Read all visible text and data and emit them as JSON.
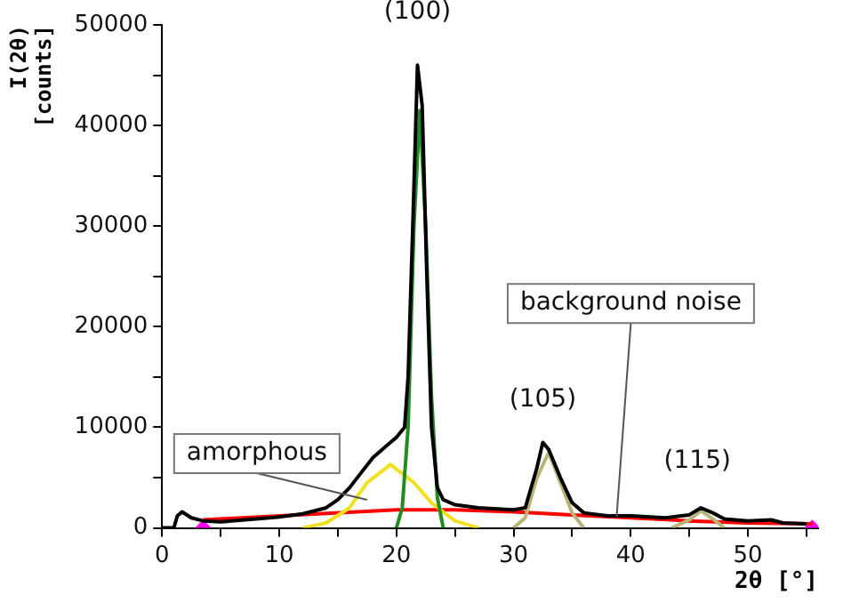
{
  "chart_data": {
    "type": "line",
    "xlabel": "2θ [°]",
    "ylabel": "I(2θ) [counts]",
    "xlim": [
      0,
      56
    ],
    "ylim": [
      0,
      50000
    ],
    "xticks": [
      0,
      {
        "value": 5,
        "label": null
      },
      10,
      {
        "value": 15,
        "label": null
      },
      20,
      {
        "value": 25,
        "label": null
      },
      30,
      {
        "value": 35,
        "label": null
      },
      40,
      {
        "value": 45,
        "label": null
      },
      50,
      {
        "value": 55,
        "label": null
      }
    ],
    "yticks": [
      0,
      {
        "value": 5000,
        "label": null
      },
      10000,
      {
        "value": 15000,
        "label": null
      },
      20000,
      {
        "value": 25000,
        "label": null
      },
      30000,
      {
        "value": 35000,
        "label": null
      },
      40000,
      {
        "value": 45000,
        "label": null
      },
      50000
    ],
    "grid": false,
    "legend": false,
    "line_style": "solid",
    "series": [
      {
        "color": "#000000",
        "x": [
          0,
          1,
          1.3,
          1.7,
          2.5,
          3.5,
          5,
          8,
          10,
          12,
          14,
          15,
          16,
          17,
          18,
          19,
          20,
          20.7,
          21,
          21.4,
          21.8,
          22.2,
          22.6,
          23,
          23.5,
          24,
          25,
          27,
          30,
          31,
          32,
          32.5,
          33,
          34,
          35,
          36,
          38,
          40,
          43,
          45,
          46,
          47,
          48,
          50,
          52,
          53,
          55
        ],
        "values": [
          0,
          0,
          1200,
          1600,
          1000,
          700,
          600,
          900,
          1100,
          1400,
          2000,
          2800,
          4000,
          5500,
          7000,
          8000,
          9000,
          10000,
          15000,
          30000,
          46000,
          42000,
          25000,
          10000,
          4000,
          2800,
          2300,
          2000,
          1800,
          2000,
          6000,
          8500,
          7800,
          5000,
          2500,
          1500,
          1200,
          1200,
          1000,
          1300,
          2000,
          1500,
          900,
          700,
          800,
          500,
          400
        ]
      },
      {
        "color": "#228b22",
        "x": [
          20,
          20.5,
          21,
          21.5,
          22,
          22.5,
          23,
          23.5,
          24
        ],
        "values": [
          0,
          2000,
          10000,
          30000,
          41500,
          30000,
          13000,
          3000,
          0
        ]
      },
      {
        "color": "#f0e020",
        "x": [
          12,
          14,
          16,
          17.5,
          19.5,
          21.5,
          23,
          25,
          27
        ],
        "values": [
          0,
          500,
          2000,
          4500,
          6300,
          4500,
          2500,
          700,
          0
        ]
      },
      {
        "color": "#b8b478",
        "x": [
          30,
          31,
          32,
          33,
          34,
          35,
          36,
          40,
          43.5,
          45,
          46,
          47,
          48
        ],
        "values": [
          0,
          1000,
          5000,
          7500,
          4500,
          1500,
          0,
          null,
          0,
          800,
          1700,
          900,
          0
        ]
      },
      {
        "color": "#ff0000",
        "x": [
          3.5,
          10,
          20,
          25,
          30,
          35,
          40,
          45,
          50,
          55.5
        ],
        "values": [
          800,
          1200,
          1800,
          1800,
          1600,
          1300,
          1000,
          700,
          500,
          400
        ]
      },
      {
        "type": "scatter",
        "marker": "diamond",
        "color": "#ff00ff",
        "x": [
          3.5,
          55.5
        ],
        "values": [
          0,
          0
        ]
      }
    ],
    "annotations": [
      {
        "text": "(100)",
        "x": 21.8,
        "y": 46000
      },
      {
        "text": "(105)",
        "x": 32.5,
        "y": 8500
      },
      {
        "text": "(115)",
        "x": 46,
        "y": 2000
      },
      {
        "text": "amorphous",
        "x": 17.5,
        "y": 2800
      },
      {
        "text": "background noise",
        "x": 38.8,
        "y": 1100
      }
    ]
  }
}
